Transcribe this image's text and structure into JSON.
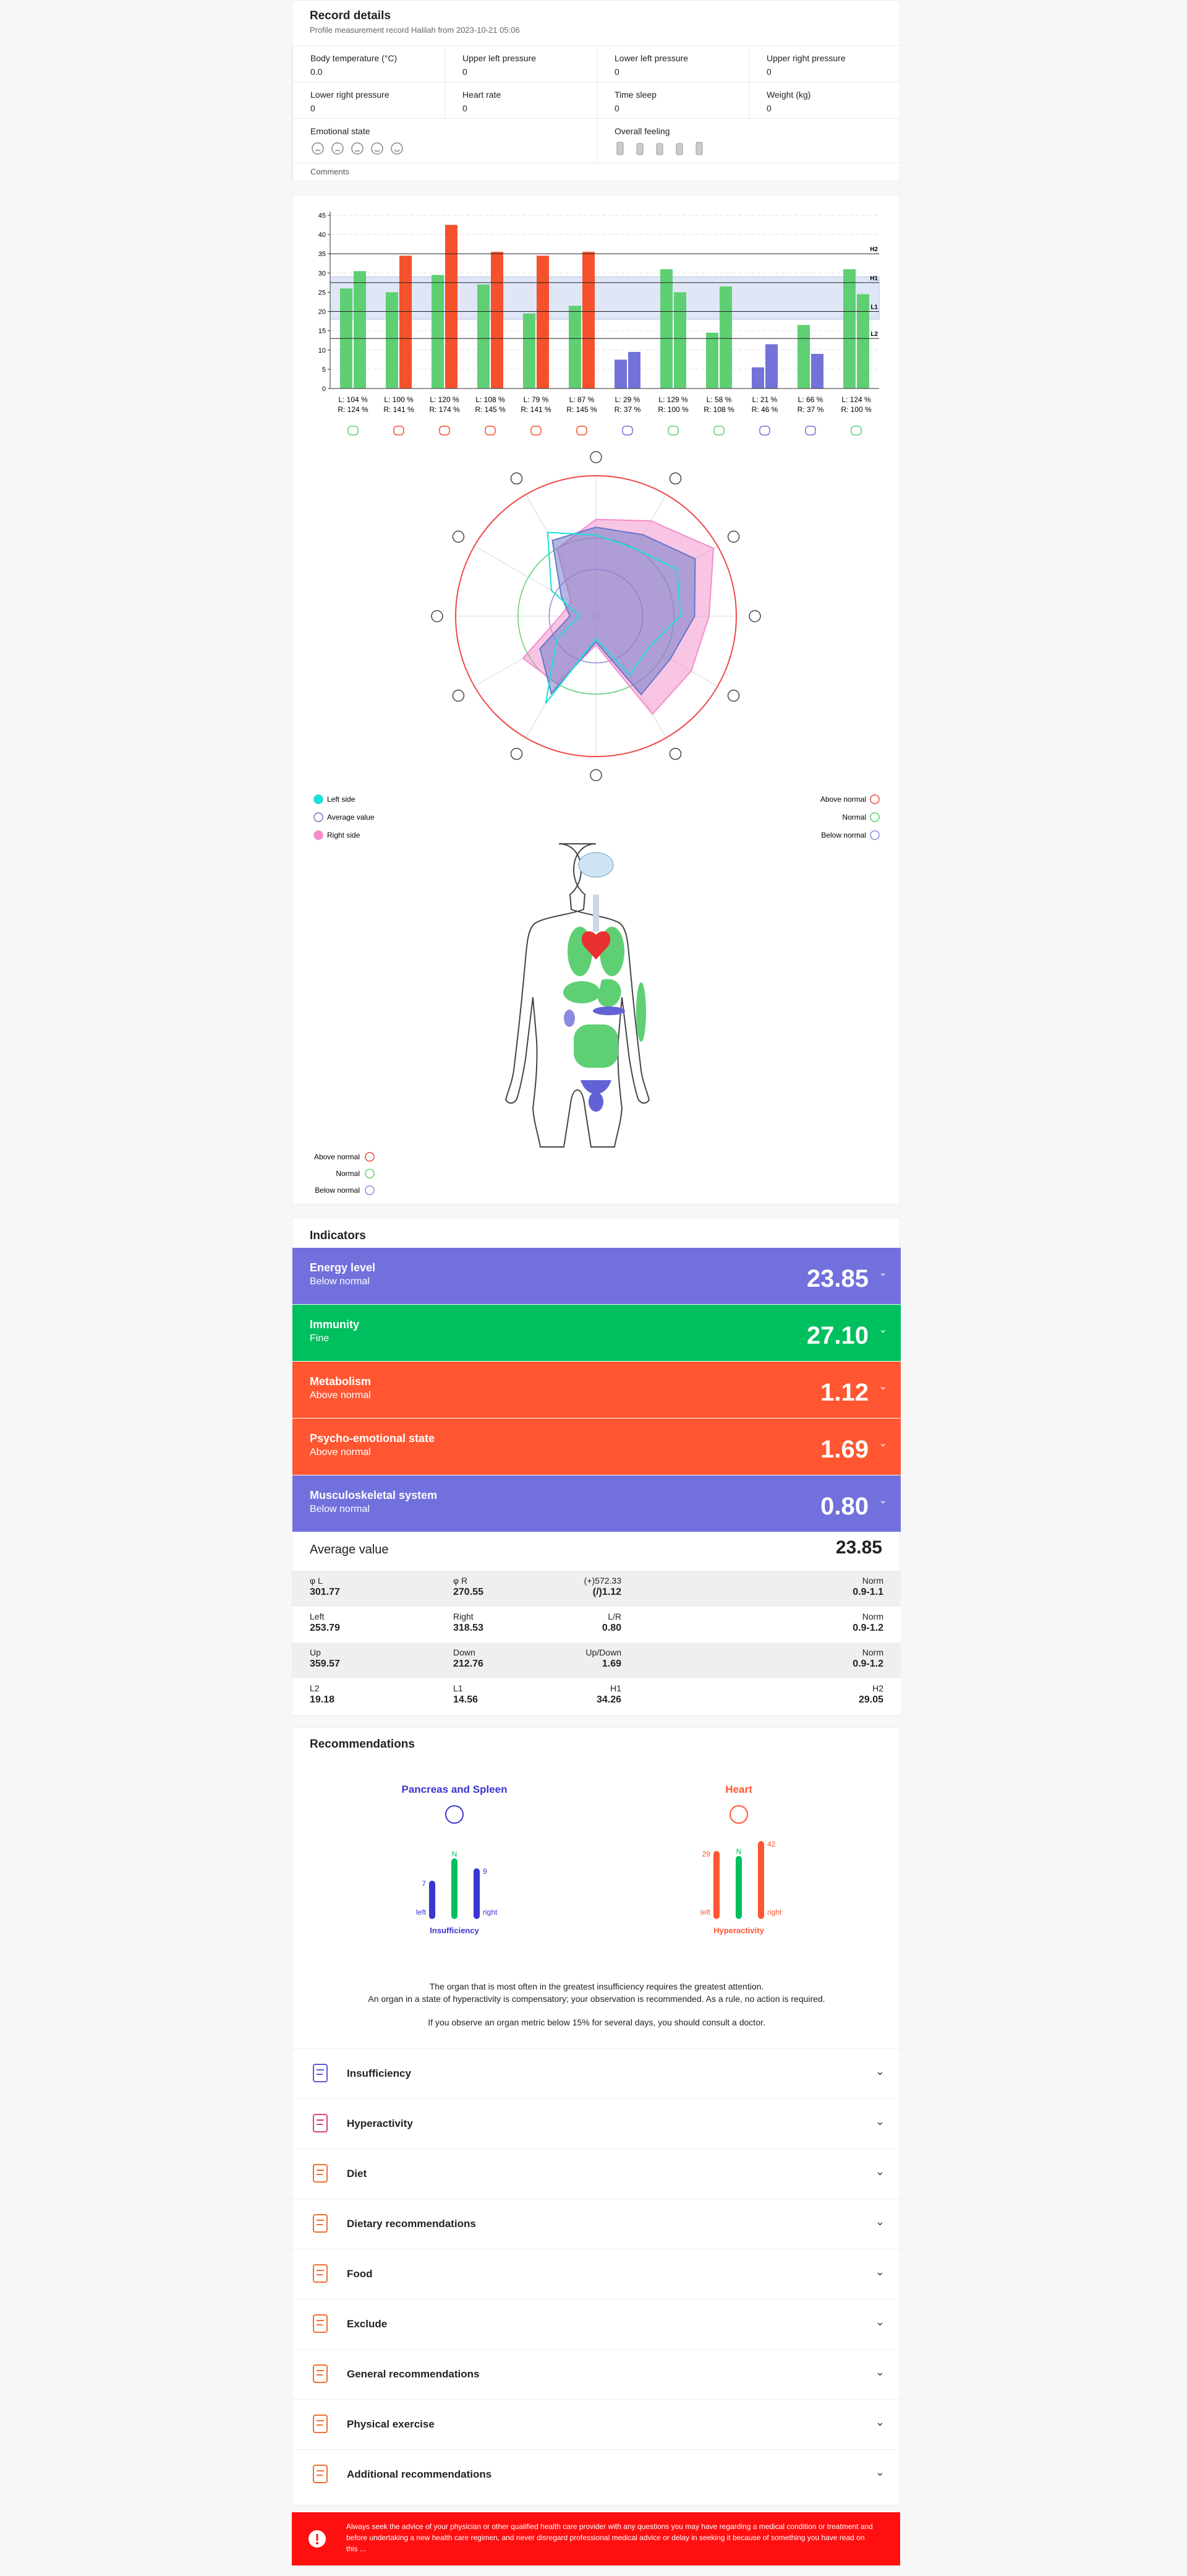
{
  "record": {
    "title": "Record details",
    "subtitle": "Profile measurement record Halilah from 2023-10-21 05:06",
    "fields": [
      {
        "label": "Body temperature (°C)",
        "value": "0.0"
      },
      {
        "label": "Upper left pressure",
        "value": "0"
      },
      {
        "label": "Lower left pressure",
        "value": "0"
      },
      {
        "label": "Upper right pressure",
        "value": "0"
      },
      {
        "label": "Lower right pressure",
        "value": "0"
      },
      {
        "label": "Heart rate",
        "value": "0"
      },
      {
        "label": "Time sleep",
        "value": "0"
      },
      {
        "label": "Weight (kg)",
        "value": "0"
      }
    ],
    "emotional_state": "Emotional state",
    "overall_feeling": "Overall feeling",
    "comments": "Comments"
  },
  "chart_data": [
    {
      "type": "bar",
      "ylim": [
        0,
        45
      ],
      "yticks": [
        0,
        5,
        10,
        15,
        20,
        25,
        30,
        35,
        40,
        45
      ],
      "grid": true,
      "normal_band": [
        18,
        29
      ],
      "reference_lines": [
        {
          "label": "H2",
          "value": 35
        },
        {
          "label": "H1",
          "value": 27.5
        },
        {
          "label": "L1",
          "value": 20
        },
        {
          "label": "L2",
          "value": 13
        }
      ],
      "left_labels": [
        "L: 104 %",
        "L: 100 %",
        "L: 120 %",
        "L: 108 %",
        "L: 79 %",
        "L: 87 %",
        "L: 29 %",
        "L: 129 %",
        "L: 58 %",
        "L: 21 %",
        "L: 66 %",
        "L: 124 %"
      ],
      "right_labels": [
        "R: 124 %",
        "R: 141 %",
        "R: 174 %",
        "R: 145 %",
        "R: 141 %",
        "R: 145 %",
        "R: 37 %",
        "R: 100 %",
        "R: 108 %",
        "R: 46 %",
        "R: 37 %",
        "R: 100 %"
      ],
      "series": [
        {
          "values": [
            26,
            25,
            29.5,
            27,
            19.5,
            21.5,
            7.5,
            31,
            14.5,
            5.5,
            16.5,
            31
          ],
          "colors": [
            "#5fcf74",
            "#5fcf74",
            "#5fcf74",
            "#5fcf74",
            "#5fcf74",
            "#5fcf74",
            "#7272d8",
            "#5fcf74",
            "#5fcf74",
            "#7272d8",
            "#5fcf74",
            "#5fcf74"
          ]
        },
        {
          "values": [
            30.5,
            34.5,
            42.5,
            35.5,
            34.5,
            35.5,
            9.5,
            25,
            26.5,
            11.5,
            9,
            24.5
          ],
          "colors": [
            "#5fcf74",
            "#f4512c",
            "#f4512c",
            "#f4512c",
            "#f4512c",
            "#f4512c",
            "#7272d8",
            "#5fcf74",
            "#5fcf74",
            "#7272d8",
            "#7272d8",
            "#5fcf74"
          ]
        }
      ]
    },
    {
      "type": "radar",
      "rlim": [
        0,
        180
      ],
      "rings": [
        {
          "name": "Above normal",
          "value": 180,
          "color": "#f04848"
        },
        {
          "name": "Normal",
          "value": 100,
          "color": "#5fcf74"
        },
        {
          "name": "Below normal",
          "value": 60,
          "color": "#8a8ae0"
        }
      ],
      "series": [
        {
          "name": "Left side",
          "color": "#19e0dc",
          "values": [
            104,
            100,
            120,
            108,
            79,
            87,
            29,
            129,
            58,
            21,
            66,
            124
          ]
        },
        {
          "name": "Average value",
          "color": "#6676c8",
          "values": [
            114,
            120.5,
            147,
            126.5,
            110,
            116,
            33,
            114.5,
            83,
            33.5,
            51.5,
            112
          ]
        },
        {
          "name": "Right side",
          "color": "#f48ccc",
          "values": [
            124,
            141,
            174,
            145,
            141,
            145,
            37,
            100,
            108,
            46,
            37,
            100
          ]
        }
      ]
    }
  ],
  "body_legend": [
    {
      "label": "Above normal",
      "color": "#f04848"
    },
    {
      "label": "Normal",
      "color": "#5fcf74"
    },
    {
      "label": "Below normal",
      "color": "#8a8ae0"
    }
  ],
  "indicators": {
    "title": "Indicators",
    "items": [
      {
        "name": "Energy level",
        "status": "Below normal",
        "value": "23.85",
        "color": "#7170dc"
      },
      {
        "name": "Immunity",
        "status": "Fine",
        "value": "27.10",
        "color": "#00bf5f"
      },
      {
        "name": "Metabolism",
        "status": "Above normal",
        "value": "1.12",
        "color": "#ff5631"
      },
      {
        "name": "Psycho-emotional state",
        "status": "Above normal",
        "value": "1.69",
        "color": "#ff5631"
      },
      {
        "name": "Musculoskeletal system",
        "status": "Below normal",
        "value": "0.80",
        "color": "#7170dc"
      }
    ],
    "average": {
      "label": "Average value",
      "value": "23.85"
    },
    "table": [
      [
        {
          "label": "φ L",
          "value": "301.77"
        },
        {
          "label": "φ R",
          "value": "270.55"
        },
        {
          "label": "(+)572.33",
          "value": "(/)1.12"
        },
        {
          "label": "Norm",
          "value": "0.9-1.1"
        }
      ],
      [
        {
          "label": "Left",
          "value": "253.79"
        },
        {
          "label": "Right",
          "value": "318.53"
        },
        {
          "label": "L/R",
          "value": "0.80"
        },
        {
          "label": "Norm",
          "value": "0.9-1.2"
        }
      ],
      [
        {
          "label": "Up",
          "value": "359.57"
        },
        {
          "label": "Down",
          "value": "212.76"
        },
        {
          "label": "Up/Down",
          "value": "1.69"
        },
        {
          "label": "Norm",
          "value": "0.9-1.2"
        }
      ],
      [
        {
          "label": "L2",
          "value": "19.18"
        },
        {
          "label": "L1",
          "value": "14.56"
        },
        {
          "label": "H1",
          "value": "34.26"
        },
        {
          "label": "H2",
          "value": "29.05"
        }
      ]
    ]
  },
  "recommendations": {
    "title": "Recommendations",
    "organs": [
      {
        "name": "Pancreas and Spleen",
        "color": "#3a36d0",
        "left": "7",
        "norm": "N",
        "right": "9",
        "left_label": "left",
        "right_label": "right",
        "state": "Insufficiency"
      },
      {
        "name": "Heart",
        "color": "#ff5631",
        "left": "29",
        "norm": "N",
        "right": "42",
        "left_label": "left",
        "right_label": "right",
        "state": "Hyperactivity"
      }
    ],
    "notes": [
      "The organ that is most often in the greatest insufficiency requires the greatest attention.",
      "An organ in a state of hyperactivity is compensatory; your observation is recommended. As a rule, no action is required.",
      "If you observe an organ metric below 15% for several days, you should consult a doctor."
    ],
    "sections": [
      "Insufficiency",
      "Hyperactivity",
      "Diet",
      "Dietary recommendations",
      "Food",
      "Exclude",
      "General recommendations",
      "Physical exercise",
      "Additional recommendations"
    ]
  },
  "disclaimer": "Always seek the advice of your physician or other qualified health care provider with any questions you may have regarding a medical condition or treatment and before undertaking a new health care regimen, and never disregard professional medical advice or delay in seeking it because of something you have read on this ..."
}
